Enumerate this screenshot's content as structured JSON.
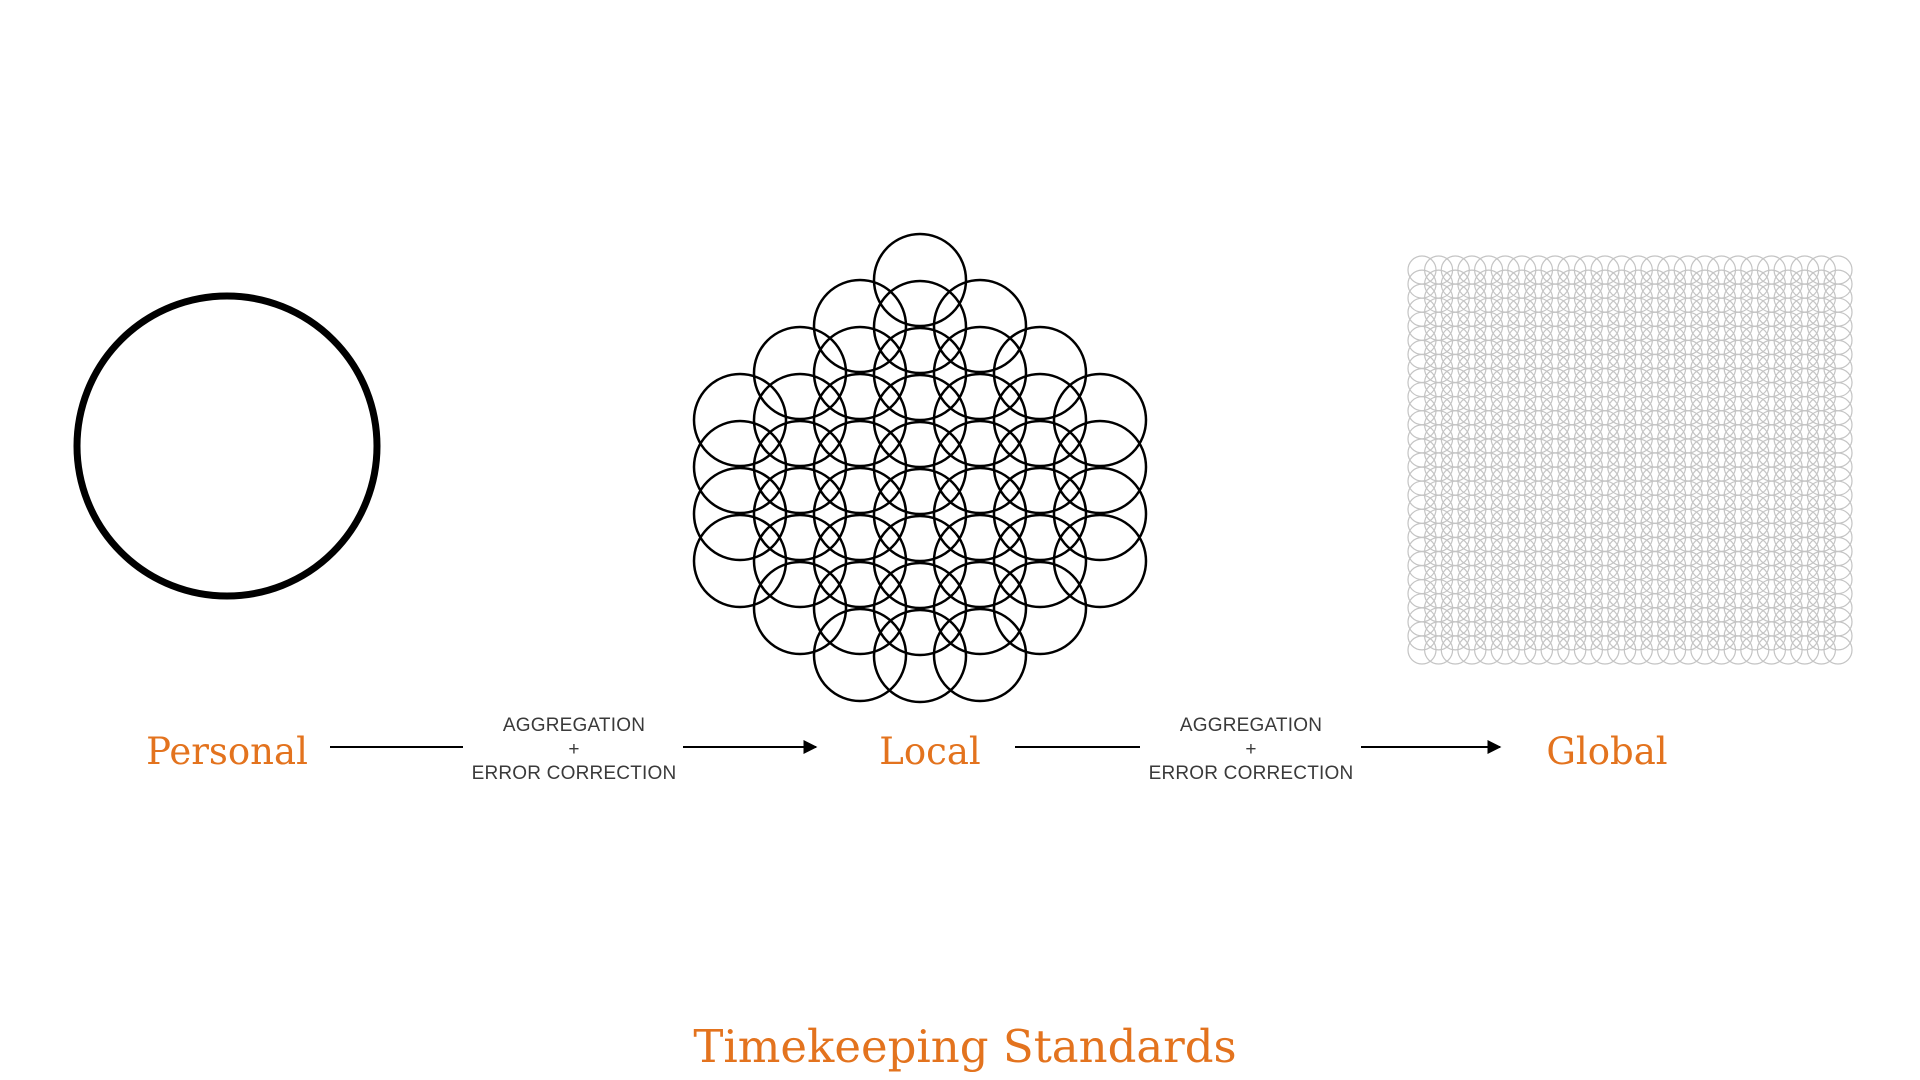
{
  "colors": {
    "accent": "#e3731e",
    "ink": "#000000",
    "process_text": "#3a3a3a",
    "faint_circle": "#c4c4c4"
  },
  "stages": [
    {
      "label": "Personal",
      "icon": "single-circle-icon"
    },
    {
      "label": "Local",
      "icon": "circle-cluster-icon"
    },
    {
      "label": "Global",
      "icon": "circle-grid-icon"
    }
  ],
  "transitions": [
    {
      "line1": "AGGREGATION",
      "line2": "+",
      "line3": "ERROR CORRECTION"
    },
    {
      "line1": "AGGREGATION",
      "line2": "+",
      "line3": "ERROR CORRECTION"
    }
  ],
  "title": "Timekeeping Standards"
}
